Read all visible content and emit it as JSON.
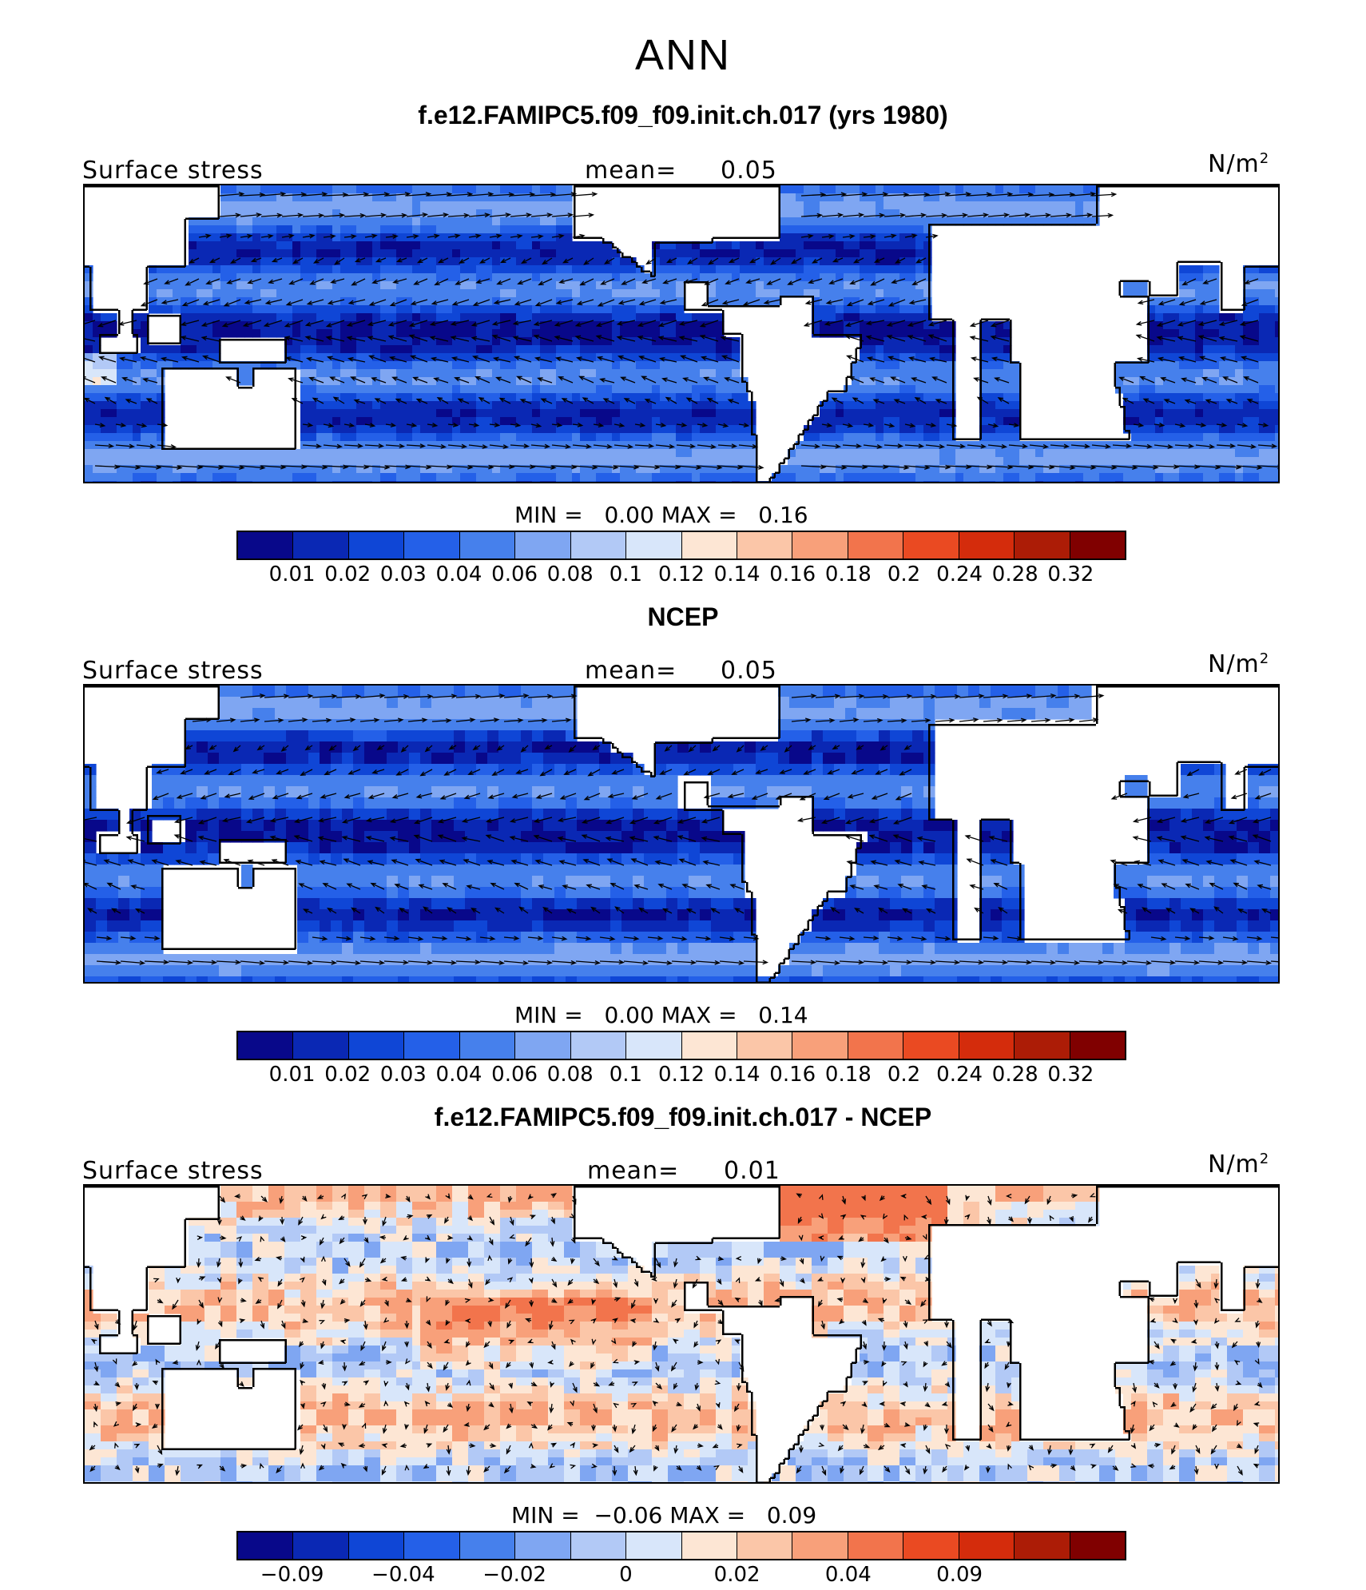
{
  "figure_title": "ANN",
  "colors": [
    "#08088a",
    "#0a28b4",
    "#0f46d6",
    "#2460e8",
    "#4680ec",
    "#7fa6f2",
    "#b2c9f6",
    "#d8e6fa",
    "#fde6d4",
    "#fbc6a8",
    "#f8a07a",
    "#f2744c",
    "#ea4a22",
    "#d42c0c",
    "#ac1c06",
    "#800000"
  ],
  "panels": [
    {
      "title": "f.e12.FAMIPC5.f09_f09.init.ch.017 (yrs 1980)",
      "left_label": "Surface stress",
      "mean_label": "mean=",
      "mean_value": "0.05",
      "units": "N/m",
      "units_sup": "2",
      "min_label": "MIN =",
      "min_value": "0.00",
      "max_label": "MAX =",
      "max_value": "0.16",
      "ticks": [
        "0.01",
        "0.02",
        "0.03",
        "0.04",
        "0.06",
        "0.08",
        "0.1",
        "0.12",
        "0.14",
        "0.16",
        "0.18",
        "0.2",
        "0.24",
        "0.28",
        "0.32"
      ],
      "field": "model"
    },
    {
      "title": "NCEP",
      "left_label": "Surface stress",
      "mean_label": "mean=",
      "mean_value": "0.05",
      "units": "N/m",
      "units_sup": "2",
      "min_label": "MIN =",
      "min_value": "0.00",
      "max_label": "MAX =",
      "max_value": "0.14",
      "ticks": [
        "0.01",
        "0.02",
        "0.03",
        "0.04",
        "0.06",
        "0.08",
        "0.1",
        "0.12",
        "0.14",
        "0.16",
        "0.18",
        "0.2",
        "0.24",
        "0.28",
        "0.32"
      ],
      "field": "obs"
    },
    {
      "title": "f.e12.FAMIPC5.f09_f09.init.ch.017 - NCEP",
      "left_label": "Surface stress",
      "mean_label": "mean=",
      "mean_value": "0.01",
      "units": "N/m",
      "units_sup": "2",
      "min_label": "MIN =",
      "min_value": "−0.06",
      "max_label": "MAX =",
      "max_value": "0.09",
      "ticks": [
        "−0.09",
        "",
        "−0.04",
        "",
        "−0.02",
        "",
        "0",
        "",
        "0.02",
        "",
        "0.04",
        "",
        "0.09",
        "",
        ""
      ],
      "field": "diff"
    }
  ]
}
